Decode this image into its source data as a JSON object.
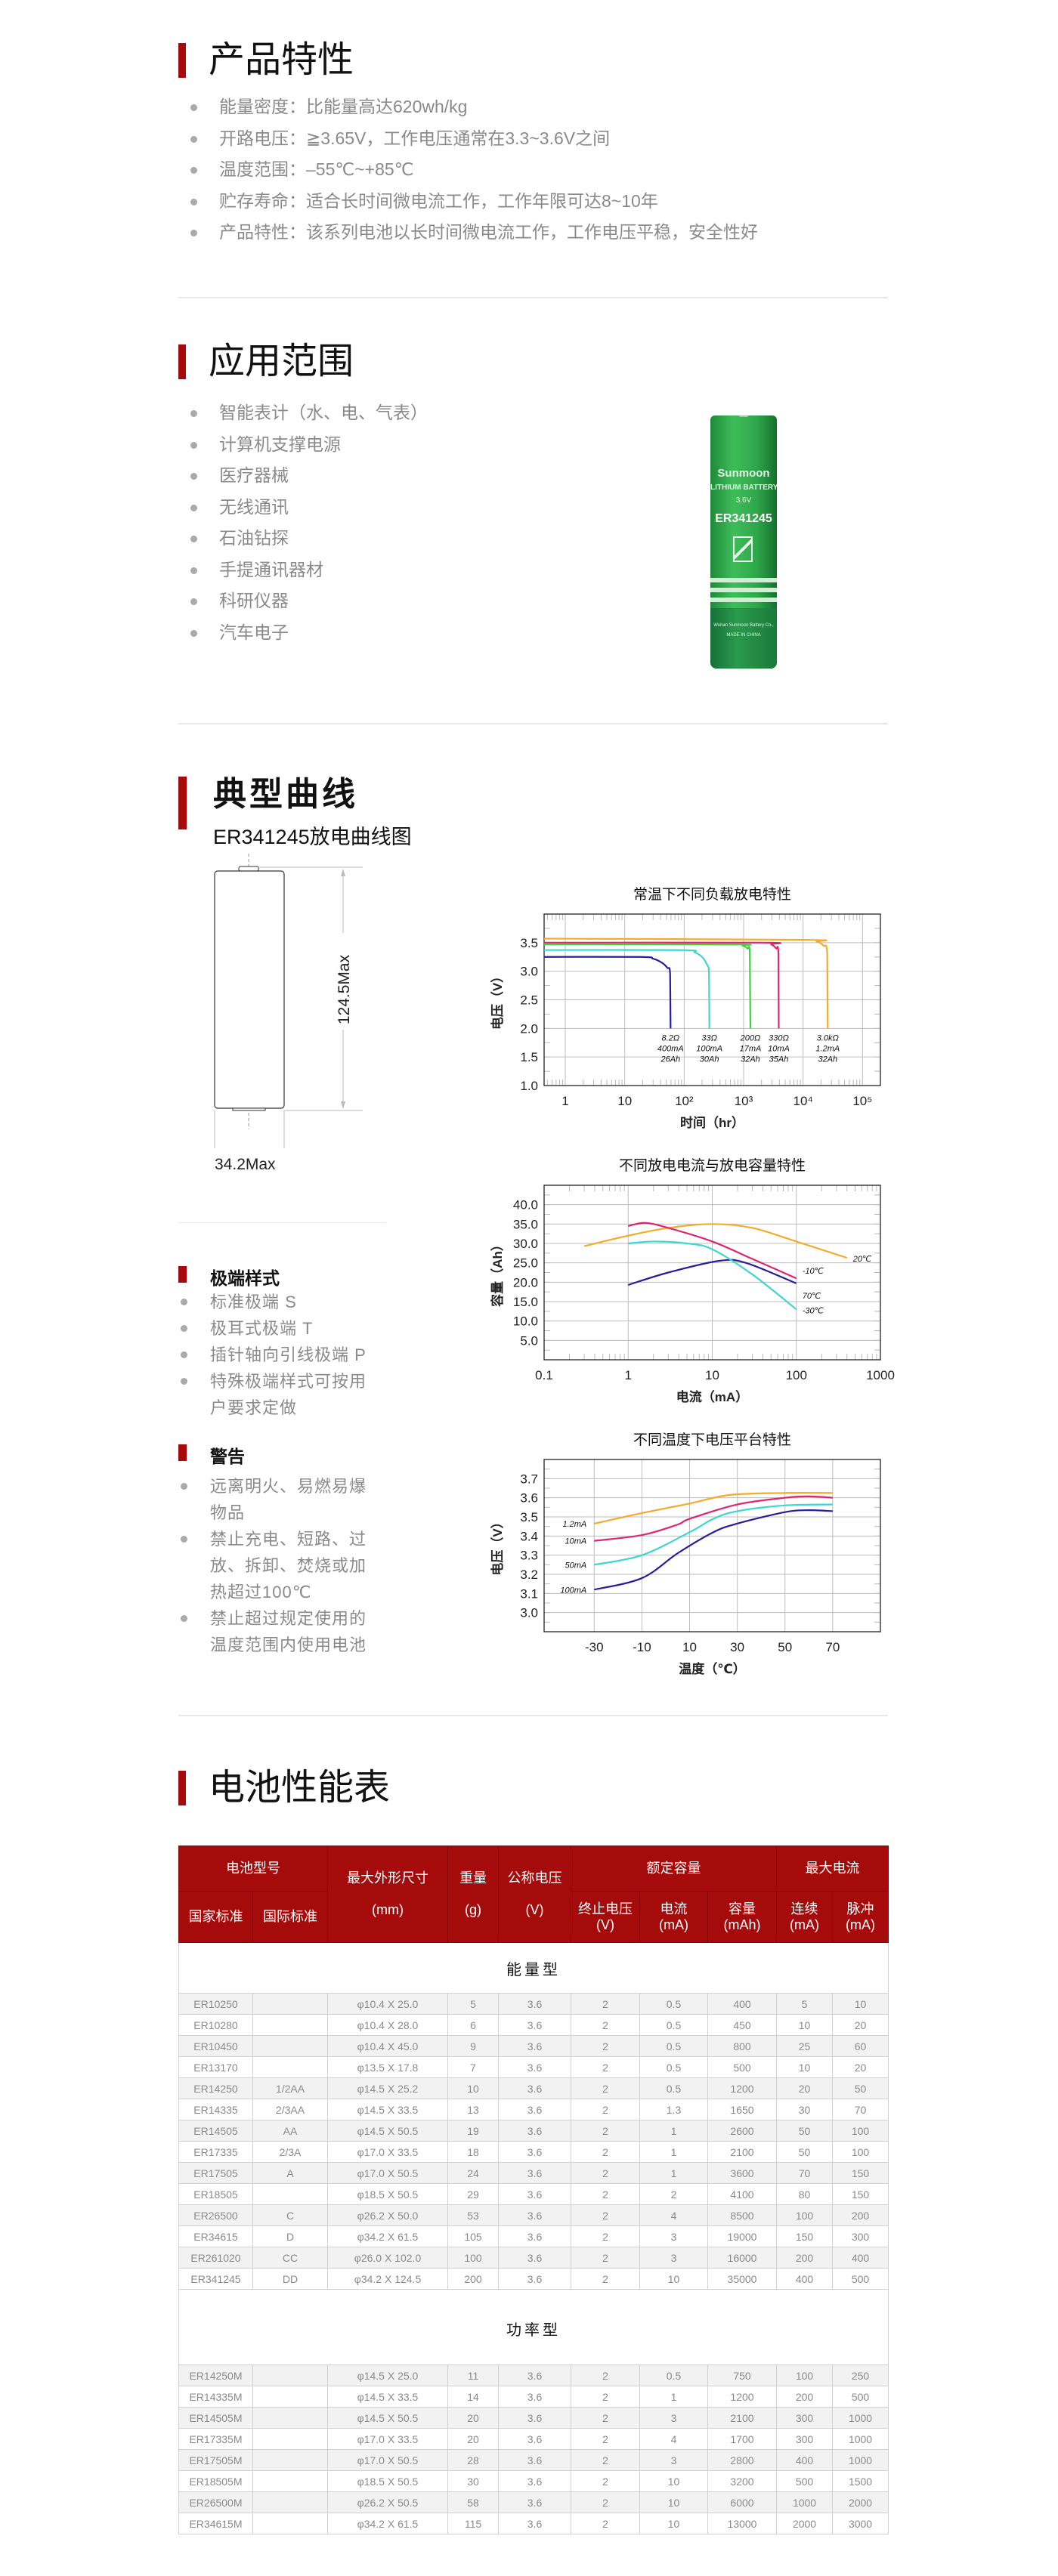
{
  "sections": {
    "features": {
      "title": "产品特性",
      "items": [
        "能量密度：比能量高达620wh/kg",
        "开路电压：≧3.65V，工作电压通常在3.3~3.6V之间",
        "温度范围：–55℃~+85℃",
        "贮存寿命：适合长时间微电流工作，工作年限可达8~10年",
        "产品特性：该系列电池以长时间微电流工作，工作电压平稳，安全性好"
      ]
    },
    "applications": {
      "title": "应用范围",
      "items": [
        "智能表计（水、电、气表）",
        "计算机支撑电源",
        "医疗器械",
        "无线通讯",
        "石油钻探",
        "手提通讯器材",
        "科研仪器",
        "汽车电子"
      ],
      "battery_image": {
        "brand": "Sunmoon",
        "line1": "LITHIUM BATTERY",
        "line2": "3.6V",
        "model": "ER341245",
        "company": "Wuhan Sunmoon Battery Co.,",
        "made_in": "MADE IN CHINA",
        "color": "#2ea64a"
      }
    },
    "curves": {
      "title": "典型曲线",
      "subtitle": "ER341245放电曲线图",
      "drawing": {
        "height_label": "124.5Max",
        "width_label": "34.2Max"
      },
      "terminal": {
        "title": "极端样式",
        "items": [
          "标准极端 S",
          "极耳式极端 T",
          "插针轴向引线极端 P",
          "特殊极端样式可按用户要求定做"
        ]
      },
      "warning": {
        "title": "警告",
        "items": [
          "远离明火、易燃易爆物品",
          "禁止充电、短路、过放、拆卸、焚烧或加热超过100℃",
          "禁止超过规定使用的温度范围内使用电池"
        ]
      }
    },
    "table_section": {
      "title": "电池性能表"
    }
  },
  "chart_data": [
    {
      "type": "line",
      "title": "常温下不同负载放电特性",
      "xlabel": "时间（hr）",
      "ylabel": "电压（V）",
      "xscale": "log",
      "xlim": [
        0.44,
        200000
      ],
      "ylim": [
        1.0,
        4.0
      ],
      "xticks": [
        1,
        10,
        100,
        1000,
        10000,
        100000
      ],
      "xtick_labels": [
        "1",
        "10",
        "10²",
        "10³",
        "10⁴",
        "10⁵"
      ],
      "yticks": [
        1.0,
        1.5,
        2.0,
        2.5,
        3.0,
        3.5
      ],
      "ytick_labels": [
        "1.0",
        "1.5",
        "2.0",
        "2.5",
        "3.0",
        "3.5"
      ],
      "grid": true,
      "series": [
        {
          "label": [
            "8.2Ω",
            "400mA",
            "26Ah"
          ],
          "color": "#2a1d9c",
          "points": [
            [
              0.44,
              3.25
            ],
            [
              18,
              3.25
            ],
            [
              30,
              3.22
            ],
            [
              42,
              3.15
            ],
            [
              52,
              3.06
            ],
            [
              58,
              2.95
            ],
            [
              59,
              2.0
            ]
          ]
        },
        {
          "label": [
            "33Ω",
            "100mA",
            "30Ah"
          ],
          "color": "#3fd6cf",
          "points": [
            [
              0.44,
              3.37
            ],
            [
              90,
              3.37
            ],
            [
              150,
              3.33
            ],
            [
              200,
              3.25
            ],
            [
              240,
              3.12
            ],
            [
              262,
              2.95
            ],
            [
              265,
              2.0
            ]
          ]
        },
        {
          "label": [
            "200Ω",
            "17mA",
            "32Ah"
          ],
          "color": "#35d935",
          "points": [
            [
              0.44,
              3.47
            ],
            [
              700,
              3.47
            ],
            [
              950,
              3.45
            ],
            [
              1150,
              3.4
            ],
            [
              1270,
              3.3
            ],
            [
              1300,
              2.0
            ]
          ]
        },
        {
          "label": [
            "330Ω",
            "10mA",
            "35Ah"
          ],
          "color": "#e0246e",
          "points": [
            [
              0.44,
              3.5
            ],
            [
              2000,
              3.5
            ],
            [
              2900,
              3.47
            ],
            [
              3500,
              3.4
            ],
            [
              3850,
              3.3
            ],
            [
              3900,
              2.0
            ]
          ]
        },
        {
          "label": [
            "3.0kΩ",
            "1.2mA",
            "32Ah"
          ],
          "color": "#f5aa2a",
          "points": [
            [
              0.44,
              3.57
            ],
            [
              10000,
              3.55
            ],
            [
              17000,
              3.52
            ],
            [
              22000,
              3.45
            ],
            [
              25500,
              3.3
            ],
            [
              26000,
              2.0
            ]
          ]
        }
      ]
    },
    {
      "type": "line",
      "title": "不同放电电流与放电容量特性",
      "xlabel": "电流（mA）",
      "ylabel": "容量（Ah）",
      "xscale": "log",
      "xlim": [
        0.1,
        1000
      ],
      "ylim": [
        0,
        45
      ],
      "xticks": [
        0.1,
        1,
        10,
        100,
        1000
      ],
      "xtick_labels": [
        "0.1",
        "1",
        "10",
        "100",
        "1000"
      ],
      "yticks": [
        5,
        10,
        15,
        20,
        25,
        30,
        35,
        40
      ],
      "ytick_labels": [
        "5.0",
        "10.0",
        "15.0",
        "20.0",
        "25.0",
        "30.0",
        "35.0",
        "40.0"
      ],
      "grid": true,
      "series": [
        {
          "label": [
            "20℃"
          ],
          "color": "#f5aa2a",
          "points": [
            [
              0.3,
              29.3
            ],
            [
              1,
              32
            ],
            [
              3,
              34
            ],
            [
              10,
              35
            ],
            [
              30,
              34
            ],
            [
              100,
              30.5
            ],
            [
              400,
              26.3
            ]
          ]
        },
        {
          "label": [
            "-10℃"
          ],
          "color": "#e0246e",
          "points": [
            [
              1,
              34.5
            ],
            [
              1.6,
              35.3
            ],
            [
              3,
              34
            ],
            [
              10,
              30.5
            ],
            [
              30,
              26
            ],
            [
              100,
              21
            ]
          ]
        },
        {
          "label": [
            "70℃"
          ],
          "color": "#2a1d9c",
          "points": [
            [
              1,
              19.3
            ],
            [
              3,
              22.5
            ],
            [
              12,
              25.5
            ],
            [
              25,
              25
            ],
            [
              100,
              19.7
            ]
          ]
        },
        {
          "label": [
            "-30℃"
          ],
          "color": "#3fd6cf",
          "points": [
            [
              1,
              30
            ],
            [
              2,
              30.5
            ],
            [
              5,
              30
            ],
            [
              10,
              28.5
            ],
            [
              30,
              22
            ],
            [
              100,
              13
            ]
          ]
        }
      ]
    },
    {
      "type": "line",
      "title": "不同温度下电压平台特性",
      "xlabel": "温度（℃）",
      "ylabel": "电压（V）",
      "xscale": "linear",
      "xlim": [
        -51,
        90
      ],
      "ylim": [
        2.9,
        3.8
      ],
      "xticks": [
        -30,
        -10,
        10,
        30,
        50,
        70
      ],
      "xtick_labels": [
        "-30",
        "-10",
        "10",
        "30",
        "50",
        "70"
      ],
      "yticks": [
        3.0,
        3.1,
        3.2,
        3.3,
        3.4,
        3.5,
        3.6,
        3.7
      ],
      "ytick_labels": [
        "3.0",
        "3.1",
        "3.2",
        "3.3",
        "3.4",
        "3.5",
        "3.6",
        "3.7"
      ],
      "grid": true,
      "series": [
        {
          "label": [
            "1.2mA"
          ],
          "color": "#f5aa2a",
          "points": [
            [
              -30,
              3.465
            ],
            [
              -10,
              3.52
            ],
            [
              10,
              3.57
            ],
            [
              27,
              3.615
            ],
            [
              50,
              3.625
            ],
            [
              70,
              3.625
            ]
          ]
        },
        {
          "label": [
            "10mA"
          ],
          "color": "#e0246e",
          "points": [
            [
              -30,
              3.375
            ],
            [
              -10,
              3.405
            ],
            [
              5,
              3.46
            ],
            [
              10,
              3.49
            ],
            [
              30,
              3.565
            ],
            [
              50,
              3.6
            ],
            [
              60,
              3.607
            ],
            [
              70,
              3.6
            ]
          ]
        },
        {
          "label": [
            "50mA"
          ],
          "color": "#3fd6cf",
          "points": [
            [
              -30,
              3.25
            ],
            [
              -10,
              3.3
            ],
            [
              10,
              3.42
            ],
            [
              20,
              3.49
            ],
            [
              30,
              3.53
            ],
            [
              50,
              3.56
            ],
            [
              70,
              3.565
            ]
          ]
        },
        {
          "label": [
            "100mA"
          ],
          "color": "#2a1d9c",
          "points": [
            [
              -30,
              3.12
            ],
            [
              -10,
              3.18
            ],
            [
              5,
              3.31
            ],
            [
              20,
              3.42
            ],
            [
              30,
              3.465
            ],
            [
              50,
              3.525
            ],
            [
              60,
              3.535
            ],
            [
              70,
              3.53
            ]
          ]
        }
      ]
    }
  ],
  "table": {
    "header": {
      "model": "电池型号",
      "national": "国家标准",
      "international": "国际标准",
      "size": "最大外形尺寸",
      "size_unit": "(mm)",
      "weight": "重量",
      "weight_unit": "(g)",
      "voltage": "公称电压",
      "voltage_unit": "(V)",
      "rated": "额定容量",
      "cutoff": "终止电压",
      "cutoff_unit": "(V)",
      "current": "电流",
      "current_unit": "(mA)",
      "capacity": "容量",
      "capacity_unit": "(mAh)",
      "max_current": "最大电流",
      "continuous": "连续",
      "continuous_unit": "(mA)",
      "pulse": "脉冲",
      "pulse_unit": "(mA)"
    },
    "groups": [
      {
        "name": "能量型",
        "rows": [
          [
            "ER10250",
            "",
            "φ10.4 X 25.0",
            "5",
            "3.6",
            "2",
            "0.5",
            "400",
            "5",
            "10"
          ],
          [
            "ER10280",
            "",
            "φ10.4 X 28.0",
            "6",
            "3.6",
            "2",
            "0.5",
            "450",
            "10",
            "20"
          ],
          [
            "ER10450",
            "",
            "φ10.4 X 45.0",
            "9",
            "3.6",
            "2",
            "0.5",
            "800",
            "25",
            "60"
          ],
          [
            "ER13170",
            "",
            "φ13.5 X 17.8",
            "7",
            "3.6",
            "2",
            "0.5",
            "500",
            "10",
            "20"
          ],
          [
            "ER14250",
            "1/2AA",
            "φ14.5 X 25.2",
            "10",
            "3.6",
            "2",
            "0.5",
            "1200",
            "20",
            "50"
          ],
          [
            "ER14335",
            "2/3AA",
            "φ14.5 X 33.5",
            "13",
            "3.6",
            "2",
            "1.3",
            "1650",
            "30",
            "70"
          ],
          [
            "ER14505",
            "AA",
            "φ14.5 X 50.5",
            "19",
            "3.6",
            "2",
            "1",
            "2600",
            "50",
            "100"
          ],
          [
            "ER17335",
            "2/3A",
            "φ17.0 X 33.5",
            "18",
            "3.6",
            "2",
            "1",
            "2100",
            "50",
            "100"
          ],
          [
            "ER17505",
            "A",
            "φ17.0 X 50.5",
            "24",
            "3.6",
            "2",
            "1",
            "3600",
            "70",
            "150"
          ],
          [
            "ER18505",
            "",
            "φ18.5 X 50.5",
            "29",
            "3.6",
            "2",
            "2",
            "4100",
            "80",
            "150"
          ],
          [
            "ER26500",
            "C",
            "φ26.2 X 50.0",
            "53",
            "3.6",
            "2",
            "4",
            "8500",
            "100",
            "200"
          ],
          [
            "ER34615",
            "D",
            "φ34.2 X 61.5",
            "105",
            "3.6",
            "2",
            "3",
            "19000",
            "150",
            "300"
          ],
          [
            "ER261020",
            "CC",
            "φ26.0 X 102.0",
            "100",
            "3.6",
            "2",
            "3",
            "16000",
            "200",
            "400"
          ],
          [
            "ER341245",
            "DD",
            "φ34.2 X 124.5",
            "200",
            "3.6",
            "2",
            "10",
            "35000",
            "400",
            "500"
          ]
        ]
      },
      {
        "name": "功率型",
        "rows": [
          [
            "ER14250M",
            "",
            "φ14.5 X 25.0",
            "11",
            "3.6",
            "2",
            "0.5",
            "750",
            "100",
            "250"
          ],
          [
            "ER14335M",
            "",
            "φ14.5 X 33.5",
            "14",
            "3.6",
            "2",
            "1",
            "1200",
            "200",
            "500"
          ],
          [
            "ER14505M",
            "",
            "φ14.5 X 50.5",
            "20",
            "3.6",
            "2",
            "3",
            "2100",
            "300",
            "1000"
          ],
          [
            "ER17335M",
            "",
            "φ17.0 X 33.5",
            "20",
            "3.6",
            "2",
            "4",
            "1700",
            "300",
            "1000"
          ],
          [
            "ER17505M",
            "",
            "φ17.0 X 50.5",
            "28",
            "3.6",
            "2",
            "3",
            "2800",
            "400",
            "1000"
          ],
          [
            "ER18505M",
            "",
            "φ18.5 X 50.5",
            "30",
            "3.6",
            "2",
            "10",
            "3200",
            "500",
            "1500"
          ],
          [
            "ER26500M",
            "",
            "φ26.2 X 50.5",
            "58",
            "3.6",
            "2",
            "10",
            "6000",
            "1000",
            "2000"
          ],
          [
            "ER34615M",
            "",
            "φ34.2 X 61.5",
            "115",
            "3.6",
            "2",
            "10",
            "13000",
            "2000",
            "3000"
          ]
        ]
      }
    ]
  },
  "colors": {
    "accent": "#a50b0b",
    "text_muted": "#8a8a8a"
  }
}
